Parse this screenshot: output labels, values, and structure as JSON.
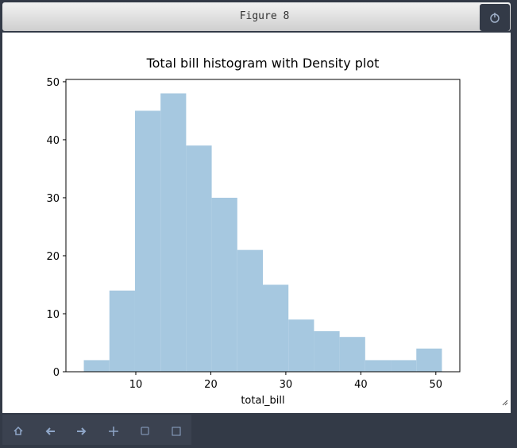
{
  "window_title": "Figure 8",
  "chart_data": {
    "type": "histogram",
    "title": "Total bill histogram with Density plot",
    "x_label": "total_bill",
    "bins": [
      3.07,
      6.48,
      9.89,
      13.3,
      16.71,
      20.12,
      23.53,
      26.94,
      30.35,
      33.76,
      37.17,
      40.58,
      43.99,
      47.4,
      50.81
    ],
    "values": [
      2,
      14,
      45,
      48,
      39,
      30,
      21,
      15,
      9,
      7,
      6,
      2,
      2,
      4
    ],
    "color": "#a6c8e0",
    "xlim": [
      0.683,
      53.197
    ],
    "xticks": [
      10,
      20,
      30,
      40,
      50
    ],
    "ylim": [
      0,
      50.4
    ],
    "yticks": [
      0,
      10,
      20,
      30,
      40,
      50
    ],
    "grid": false
  }
}
